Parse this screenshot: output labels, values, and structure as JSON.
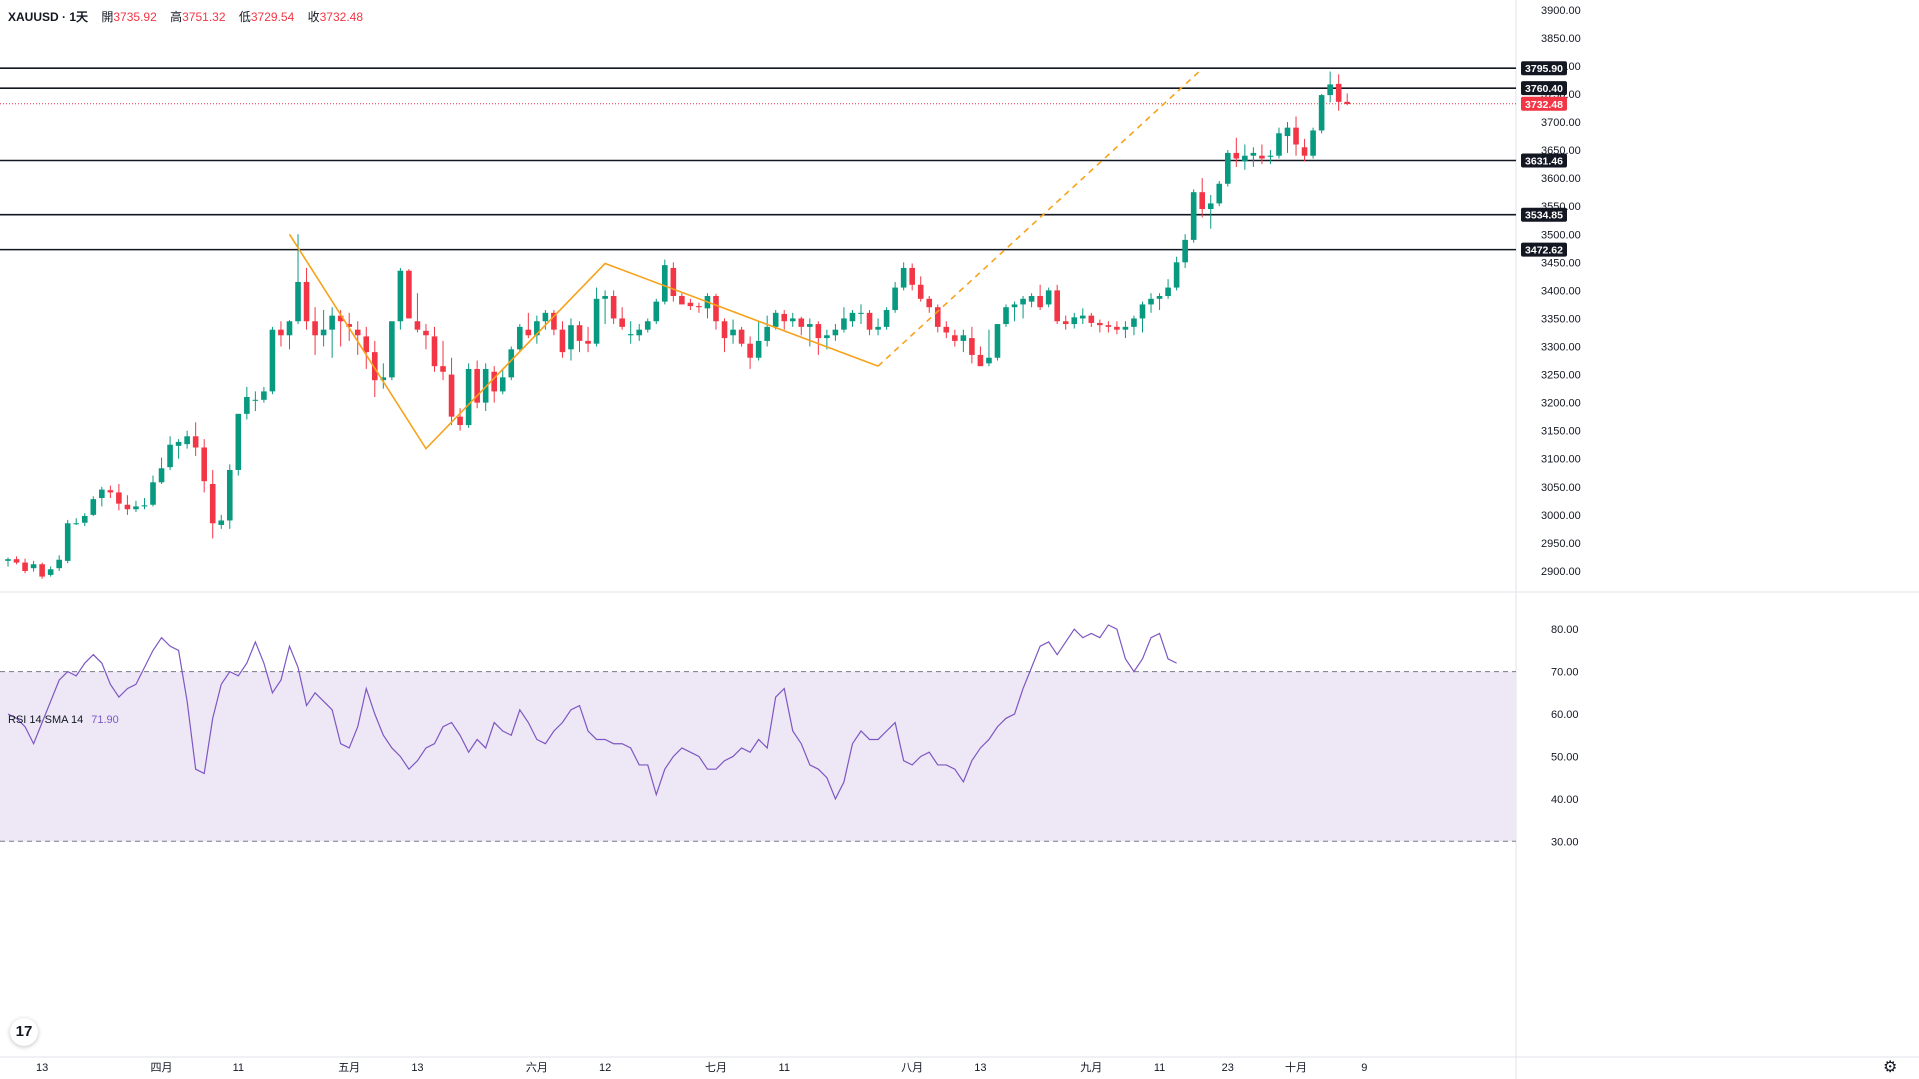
{
  "header": {
    "symbol": "XAUUSD · 1天",
    "open_label": "開",
    "open": "3735.92",
    "high_label": "高",
    "high": "3751.32",
    "low_label": "低",
    "low": "3729.54",
    "close_label": "收",
    "close": "3732.48"
  },
  "rsi_header": {
    "label": "RSI 14 SMA 14",
    "value": "71.90"
  },
  "icons": {
    "logo": "tradingview-logo-icon",
    "settings": "gear-icon"
  },
  "colors": {
    "up": "#089981",
    "down": "#f23645",
    "pattern": "#f7a21b",
    "rsi": "#7e57c2",
    "rsi_band": "#ede7f6"
  },
  "chart_data": [
    {
      "type": "candlestick",
      "symbol": "XAUUSD",
      "interval": "1天",
      "ylim": [
        2875,
        3905
      ],
      "price_ticks": [
        "2900.00",
        "2950.00",
        "3000.00",
        "3050.00",
        "3100.00",
        "3150.00",
        "3200.00",
        "3250.00",
        "3300.00",
        "3350.00",
        "3400.00",
        "3450.00",
        "3500.00",
        "3550.00",
        "3600.00",
        "3650.00",
        "3700.00",
        "3750.00",
        "3800.00",
        "3850.00",
        "3900.00"
      ],
      "x_labels": [
        {
          "i": 4,
          "label": "13"
        },
        {
          "i": 18,
          "label": "四月"
        },
        {
          "i": 27,
          "label": "11"
        },
        {
          "i": 40,
          "label": "五月"
        },
        {
          "i": 48,
          "label": "13"
        },
        {
          "i": 62,
          "label": "六月"
        },
        {
          "i": 70,
          "label": "12"
        },
        {
          "i": 83,
          "label": "七月"
        },
        {
          "i": 91,
          "label": "11"
        },
        {
          "i": 106,
          "label": "八月"
        },
        {
          "i": 114,
          "label": "13"
        },
        {
          "i": 127,
          "label": "九月"
        },
        {
          "i": 135,
          "label": "11"
        },
        {
          "i": 143,
          "label": "23"
        },
        {
          "i": 151,
          "label": "十月"
        },
        {
          "i": 159,
          "label": "9"
        }
      ],
      "candles": [
        [
          2918,
          2924,
          2908,
          2921
        ],
        [
          2921,
          2926,
          2912,
          2915
        ],
        [
          2915,
          2922,
          2896,
          2900
        ],
        [
          2905,
          2918,
          2899,
          2912
        ],
        [
          2912,
          2915,
          2886,
          2890
        ],
        [
          2893,
          2908,
          2890,
          2903
        ],
        [
          2905,
          2928,
          2900,
          2920
        ],
        [
          2918,
          2991,
          2914,
          2985
        ],
        [
          2985,
          2994,
          2982,
          2985
        ],
        [
          2986,
          3003,
          2980,
          2998
        ],
        [
          3000,
          3033,
          2998,
          3028
        ],
        [
          3030,
          3050,
          3015,
          3045
        ],
        [
          3044,
          3052,
          3030,
          3040
        ],
        [
          3040,
          3055,
          3008,
          3020
        ],
        [
          3018,
          3035,
          3000,
          3010
        ],
        [
          3010,
          3025,
          3005,
          3015
        ],
        [
          3015,
          3030,
          3010,
          3017
        ],
        [
          3018,
          3070,
          3015,
          3058
        ],
        [
          3058,
          3102,
          3055,
          3083
        ],
        [
          3085,
          3140,
          3080,
          3125
        ],
        [
          3123,
          3135,
          3100,
          3130
        ],
        [
          3126,
          3150,
          3118,
          3140
        ],
        [
          3140,
          3165,
          3105,
          3120
        ],
        [
          3120,
          3135,
          3040,
          3060
        ],
        [
          3055,
          3080,
          2958,
          2985
        ],
        [
          2982,
          3000,
          2975,
          2990
        ],
        [
          2990,
          3090,
          2975,
          3080
        ],
        [
          3080,
          3180,
          3070,
          3180
        ],
        [
          3180,
          3228,
          3170,
          3210
        ],
        [
          3205,
          3220,
          3185,
          3205
        ],
        [
          3205,
          3228,
          3200,
          3220
        ],
        [
          3220,
          3335,
          3215,
          3330
        ],
        [
          3330,
          3345,
          3300,
          3320
        ],
        [
          3320,
          3347,
          3295,
          3345
        ],
        [
          3345,
          3500,
          3340,
          3415
        ],
        [
          3415,
          3440,
          3330,
          3345
        ],
        [
          3345,
          3370,
          3285,
          3320
        ],
        [
          3320,
          3365,
          3300,
          3330
        ],
        [
          3330,
          3370,
          3280,
          3355
        ],
        [
          3355,
          3365,
          3300,
          3345
        ],
        [
          3340,
          3360,
          3310,
          3335
        ],
        [
          3330,
          3345,
          3285,
          3320
        ],
        [
          3318,
          3335,
          3260,
          3290
        ],
        [
          3290,
          3310,
          3210,
          3240
        ],
        [
          3240,
          3270,
          3225,
          3245
        ],
        [
          3245,
          3340,
          3240,
          3345
        ],
        [
          3345,
          3440,
          3330,
          3435
        ],
        [
          3435,
          3438,
          3350,
          3350
        ],
        [
          3345,
          3395,
          3325,
          3330
        ],
        [
          3328,
          3340,
          3295,
          3320
        ],
        [
          3318,
          3335,
          3255,
          3265
        ],
        [
          3265,
          3310,
          3240,
          3255
        ],
        [
          3250,
          3280,
          3160,
          3175
        ],
        [
          3175,
          3190,
          3150,
          3160
        ],
        [
          3160,
          3270,
          3155,
          3260
        ],
        [
          3260,
          3275,
          3190,
          3200
        ],
        [
          3200,
          3270,
          3185,
          3260
        ],
        [
          3255,
          3265,
          3200,
          3220
        ],
        [
          3220,
          3260,
          3215,
          3245
        ],
        [
          3245,
          3300,
          3240,
          3295
        ],
        [
          3295,
          3340,
          3290,
          3335
        ],
        [
          3330,
          3360,
          3315,
          3320
        ],
        [
          3320,
          3355,
          3305,
          3345
        ],
        [
          3345,
          3365,
          3330,
          3360
        ],
        [
          3360,
          3365,
          3320,
          3330
        ],
        [
          3330,
          3345,
          3280,
          3290
        ],
        [
          3295,
          3350,
          3275,
          3338
        ],
        [
          3338,
          3345,
          3290,
          3310
        ],
        [
          3310,
          3335,
          3290,
          3305
        ],
        [
          3305,
          3405,
          3300,
          3385
        ],
        [
          3385,
          3400,
          3340,
          3390
        ],
        [
          3390,
          3400,
          3340,
          3350
        ],
        [
          3350,
          3370,
          3330,
          3335
        ],
        [
          3320,
          3345,
          3305,
          3322
        ],
        [
          3320,
          3340,
          3310,
          3330
        ],
        [
          3330,
          3350,
          3325,
          3345
        ],
        [
          3345,
          3385,
          3340,
          3380
        ],
        [
          3380,
          3455,
          3375,
          3445
        ],
        [
          3440,
          3450,
          3380,
          3390
        ],
        [
          3390,
          3395,
          3375,
          3375
        ],
        [
          3378,
          3385,
          3365,
          3372
        ],
        [
          3372,
          3378,
          3360,
          3370
        ],
        [
          3368,
          3395,
          3350,
          3390
        ],
        [
          3390,
          3394,
          3330,
          3345
        ],
        [
          3345,
          3350,
          3290,
          3315
        ],
        [
          3320,
          3348,
          3305,
          3330
        ],
        [
          3330,
          3335,
          3300,
          3305
        ],
        [
          3305,
          3318,
          3260,
          3280
        ],
        [
          3280,
          3345,
          3275,
          3310
        ],
        [
          3310,
          3355,
          3300,
          3335
        ],
        [
          3335,
          3365,
          3330,
          3360
        ],
        [
          3358,
          3365,
          3330,
          3345
        ],
        [
          3345,
          3360,
          3335,
          3350
        ],
        [
          3350,
          3353,
          3320,
          3335
        ],
        [
          3335,
          3350,
          3300,
          3340
        ],
        [
          3340,
          3345,
          3285,
          3315
        ],
        [
          3315,
          3330,
          3295,
          3320
        ],
        [
          3320,
          3340,
          3310,
          3330
        ],
        [
          3330,
          3370,
          3325,
          3350
        ],
        [
          3345,
          3365,
          3335,
          3360
        ],
        [
          3360,
          3375,
          3340,
          3360
        ],
        [
          3360,
          3365,
          3320,
          3330
        ],
        [
          3330,
          3350,
          3320,
          3335
        ],
        [
          3335,
          3370,
          3330,
          3365
        ],
        [
          3365,
          3415,
          3360,
          3405
        ],
        [
          3405,
          3450,
          3400,
          3440
        ],
        [
          3440,
          3448,
          3400,
          3410
        ],
        [
          3410,
          3425,
          3380,
          3385
        ],
        [
          3385,
          3390,
          3360,
          3370
        ],
        [
          3370,
          3375,
          3325,
          3335
        ],
        [
          3335,
          3345,
          3315,
          3325
        ],
        [
          3320,
          3330,
          3300,
          3310
        ],
        [
          3310,
          3330,
          3290,
          3320
        ],
        [
          3315,
          3335,
          3270,
          3285
        ],
        [
          3285,
          3300,
          3265,
          3265
        ],
        [
          3270,
          3330,
          3265,
          3280
        ],
        [
          3280,
          3340,
          3275,
          3340
        ],
        [
          3340,
          3375,
          3335,
          3370
        ],
        [
          3370,
          3380,
          3345,
          3375
        ],
        [
          3375,
          3390,
          3350,
          3385
        ],
        [
          3380,
          3395,
          3370,
          3390
        ],
        [
          3390,
          3410,
          3365,
          3370
        ],
        [
          3375,
          3405,
          3370,
          3400
        ],
        [
          3400,
          3410,
          3340,
          3345
        ],
        [
          3345,
          3355,
          3330,
          3340
        ],
        [
          3340,
          3360,
          3332,
          3352
        ],
        [
          3350,
          3368,
          3340,
          3355
        ],
        [
          3355,
          3360,
          3335,
          3342
        ],
        [
          3342,
          3348,
          3325,
          3338
        ],
        [
          3338,
          3345,
          3325,
          3335
        ],
        [
          3335,
          3345,
          3322,
          3330
        ],
        [
          3330,
          3345,
          3315,
          3335
        ],
        [
          3335,
          3355,
          3320,
          3350
        ],
        [
          3350,
          3380,
          3325,
          3375
        ],
        [
          3375,
          3395,
          3360,
          3385
        ],
        [
          3385,
          3395,
          3365,
          3390
        ],
        [
          3390,
          3420,
          3385,
          3405
        ],
        [
          3405,
          3460,
          3400,
          3450
        ],
        [
          3450,
          3500,
          3440,
          3490
        ],
        [
          3490,
          3580,
          3485,
          3575
        ],
        [
          3575,
          3600,
          3530,
          3545
        ],
        [
          3545,
          3570,
          3510,
          3555
        ],
        [
          3555,
          3595,
          3550,
          3590
        ],
        [
          3590,
          3650,
          3585,
          3645
        ],
        [
          3645,
          3672,
          3620,
          3635
        ],
        [
          3630,
          3660,
          3615,
          3640
        ],
        [
          3640,
          3655,
          3620,
          3645
        ],
        [
          3640,
          3660,
          3625,
          3635
        ],
        [
          3638,
          3650,
          3625,
          3640
        ],
        [
          3640,
          3690,
          3635,
          3680
        ],
        [
          3675,
          3700,
          3645,
          3690
        ],
        [
          3690,
          3710,
          3640,
          3660
        ],
        [
          3655,
          3670,
          3630,
          3640
        ],
        [
          3640,
          3690,
          3635,
          3685
        ],
        [
          3685,
          3750,
          3680,
          3748
        ],
        [
          3748,
          3790,
          3735,
          3767
        ],
        [
          3768,
          3785,
          3720,
          3736
        ],
        [
          3736,
          3751,
          3730,
          3732
        ]
      ],
      "pattern_lines": [
        {
          "style": "solid",
          "points": [
            [
              33,
              3500
            ],
            [
              49,
              3118
            ],
            [
              70,
              3448
            ],
            [
              102,
              3265
            ]
          ]
        },
        {
          "style": "dashed",
          "points": [
            [
              102,
              3265
            ],
            [
              140,
              3795
            ]
          ]
        }
      ],
      "horizontal_levels": [
        {
          "value": 3795.9,
          "label": "3795.90"
        },
        {
          "value": 3760.4,
          "label": "3760.40"
        },
        {
          "value": 3631.46,
          "label": "3631.46"
        },
        {
          "value": 3534.85,
          "label": "3534.85"
        },
        {
          "value": 3472.62,
          "label": "3472.62"
        }
      ],
      "last_price": {
        "value": 3732.48,
        "label": "3732.48"
      }
    },
    {
      "type": "line",
      "name": "RSI 14 SMA 14",
      "ylim": [
        27,
        85
      ],
      "ticks": [
        "30.00",
        "40.00",
        "50.00",
        "60.00",
        "70.00",
        "80.00"
      ],
      "band": [
        30,
        70
      ],
      "values": [
        60,
        59,
        57,
        53,
        58,
        63,
        68,
        70,
        69,
        72,
        74,
        72,
        67,
        64,
        66,
        67,
        71,
        75,
        78,
        76,
        75,
        63,
        47,
        46,
        59,
        67,
        70,
        69,
        72,
        77,
        72,
        65,
        68,
        76,
        71,
        62,
        65,
        63,
        61,
        53,
        52,
        57,
        66,
        60,
        55,
        52,
        50,
        47,
        49,
        52,
        53,
        57,
        58,
        55,
        51,
        54,
        52,
        58,
        56,
        55,
        61,
        58,
        54,
        53,
        56,
        58,
        61,
        62,
        56,
        54,
        54,
        53,
        53,
        52,
        48,
        48,
        41,
        47,
        50,
        52,
        51,
        50,
        47,
        47,
        49,
        50,
        52,
        51,
        54,
        52,
        64,
        66,
        56,
        53,
        48,
        47,
        45,
        40,
        44,
        53,
        56,
        54,
        54,
        56,
        58,
        49,
        48,
        50,
        51,
        48,
        48,
        47,
        44,
        49,
        52,
        54,
        57,
        59,
        60,
        66,
        71,
        76,
        77,
        74,
        77,
        80,
        78,
        79,
        78,
        81,
        80,
        73,
        70,
        73,
        78,
        79,
        73,
        72
      ],
      "x_offset": 0,
      "last_value": "71.90"
    }
  ]
}
